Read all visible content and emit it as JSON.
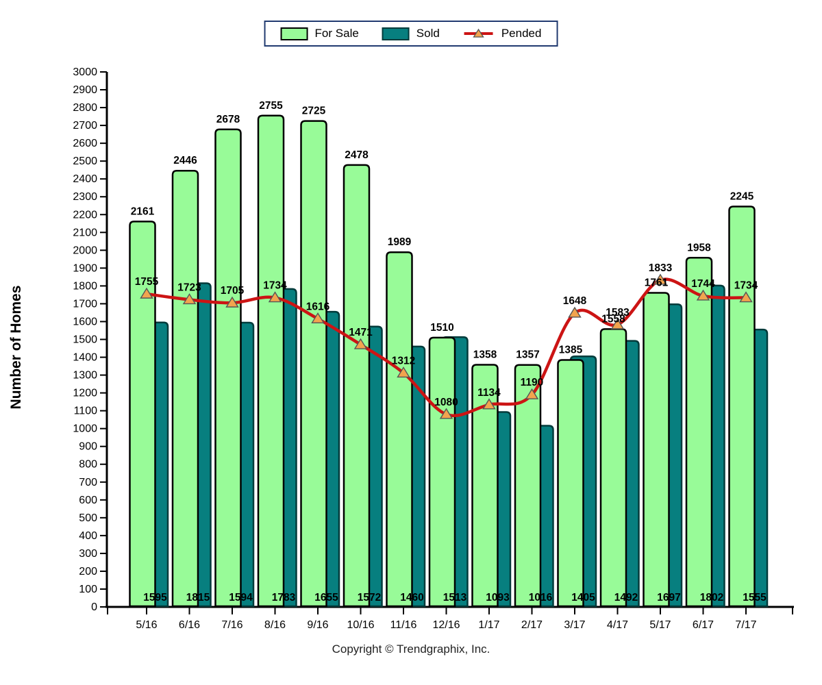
{
  "legend": {
    "border_color": "#203a70",
    "position": "top-center"
  },
  "chart_data": {
    "type": "bar",
    "title": "",
    "categories": [
      "5/16",
      "6/16",
      "7/16",
      "8/16",
      "9/16",
      "10/16",
      "11/16",
      "12/16",
      "1/17",
      "2/17",
      "3/17",
      "4/17",
      "5/17",
      "6/17",
      "7/17"
    ],
    "series": [
      {
        "name": "For Sale",
        "type": "bar",
        "color": "#98FB98",
        "border_color": "#000000",
        "values": [
          2161,
          2446,
          2678,
          2755,
          2725,
          2478,
          1989,
          1510,
          1358,
          1357,
          1385,
          1558,
          1761,
          1958,
          2245
        ]
      },
      {
        "name": "Sold",
        "type": "bar",
        "color": "#077F7F",
        "border_color": "#023B3B",
        "values": [
          1595,
          1815,
          1594,
          1783,
          1655,
          1572,
          1460,
          1513,
          1093,
          1016,
          1405,
          1492,
          1697,
          1802,
          1555
        ]
      },
      {
        "name": "Pended",
        "type": "line",
        "color": "#CC1414",
        "marker": "triangle-icon",
        "marker_color": "#F2A44E",
        "values": [
          1755,
          1723,
          1705,
          1734,
          1616,
          1471,
          1312,
          1080,
          1134,
          1190,
          1648,
          1583,
          1833,
          1744,
          1734
        ]
      }
    ],
    "xlabel": "",
    "ylabel": "Number of Homes",
    "ylim": [
      0,
      3000
    ],
    "ytick_step": 100,
    "grid": false,
    "legend_position": "top",
    "footer": "Copyright © Trendgraphix, Inc."
  }
}
